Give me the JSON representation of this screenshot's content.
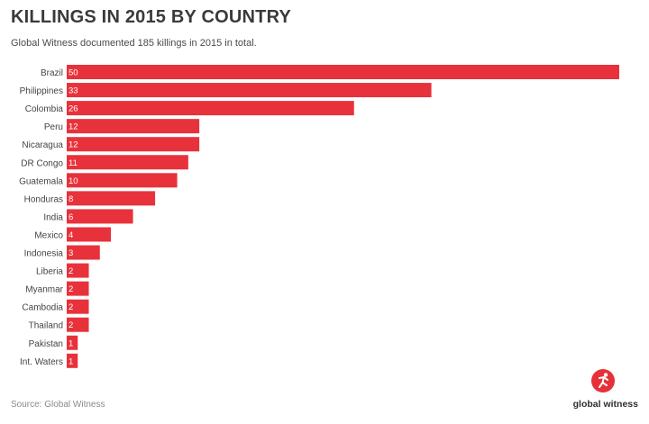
{
  "header": {
    "title": "KILLINGS IN 2015 BY COUNTRY",
    "subtitle": "Global Witness documented 185 killings in 2015 in total."
  },
  "footer": {
    "source": "Source: Global Witness",
    "brand": "global witness"
  },
  "colors": {
    "bar": "#e8323b",
    "bar_label": "#ffffff",
    "category_label": "#444444",
    "brand": "#e53238"
  },
  "chart_data": {
    "type": "bar",
    "orientation": "horizontal",
    "title": "KILLINGS IN 2015 BY COUNTRY",
    "subtitle": "Global Witness documented 185 killings in 2015 in total.",
    "categories": [
      "Brazil",
      "Philippines",
      "Colombia",
      "Peru",
      "Nicaragua",
      "DR Congo",
      "Guatemala",
      "Honduras",
      "India",
      "Mexico",
      "Indonesia",
      "Liberia",
      "Myanmar",
      "Cambodia",
      "Thailand",
      "Pakistan",
      "Int. Waters"
    ],
    "values": [
      50,
      33,
      26,
      12,
      12,
      11,
      10,
      8,
      6,
      4,
      3,
      2,
      2,
      2,
      2,
      1,
      1
    ],
    "xlim": [
      0,
      50
    ],
    "grid": false,
    "data_labels": "inside-left"
  }
}
